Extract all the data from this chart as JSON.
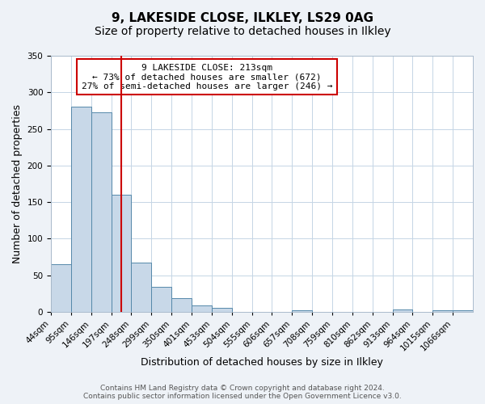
{
  "title": "9, LAKESIDE CLOSE, ILKLEY, LS29 0AG",
  "subtitle": "Size of property relative to detached houses in Ilkley",
  "xlabel": "Distribution of detached houses by size in Ilkley",
  "ylabel": "Number of detached properties",
  "bar_labels": [
    "44sqm",
    "95sqm",
    "146sqm",
    "197sqm",
    "248sqm",
    "299sqm",
    "350sqm",
    "401sqm",
    "453sqm",
    "504sqm",
    "555sqm",
    "606sqm",
    "657sqm",
    "708sqm",
    "759sqm",
    "810sqm",
    "862sqm",
    "913sqm",
    "964sqm",
    "1015sqm",
    "1066sqm"
  ],
  "bar_values": [
    65,
    280,
    273,
    160,
    67,
    34,
    19,
    9,
    6,
    0,
    0,
    0,
    2,
    0,
    0,
    0,
    0,
    3,
    0,
    2,
    2
  ],
  "bar_color": "#c8d8e8",
  "bar_edge_color": "#5588aa",
  "vline_x": 3.5,
  "vline_color": "#cc0000",
  "annotation_lines": [
    "9 LAKESIDE CLOSE: 213sqm",
    "← 73% of detached houses are smaller (672)",
    "27% of semi-detached houses are larger (246) →"
  ],
  "ylim": [
    0,
    350
  ],
  "yticks": [
    0,
    50,
    100,
    150,
    200,
    250,
    300,
    350
  ],
  "footer_line1": "Contains HM Land Registry data © Crown copyright and database right 2024.",
  "footer_line2": "Contains public sector information licensed under the Open Government Licence v3.0.",
  "bg_color": "#eef2f7",
  "plot_bg_color": "#ffffff",
  "title_fontsize": 11,
  "subtitle_fontsize": 10,
  "axis_label_fontsize": 9,
  "tick_label_fontsize": 7.5,
  "footer_fontsize": 6.5
}
